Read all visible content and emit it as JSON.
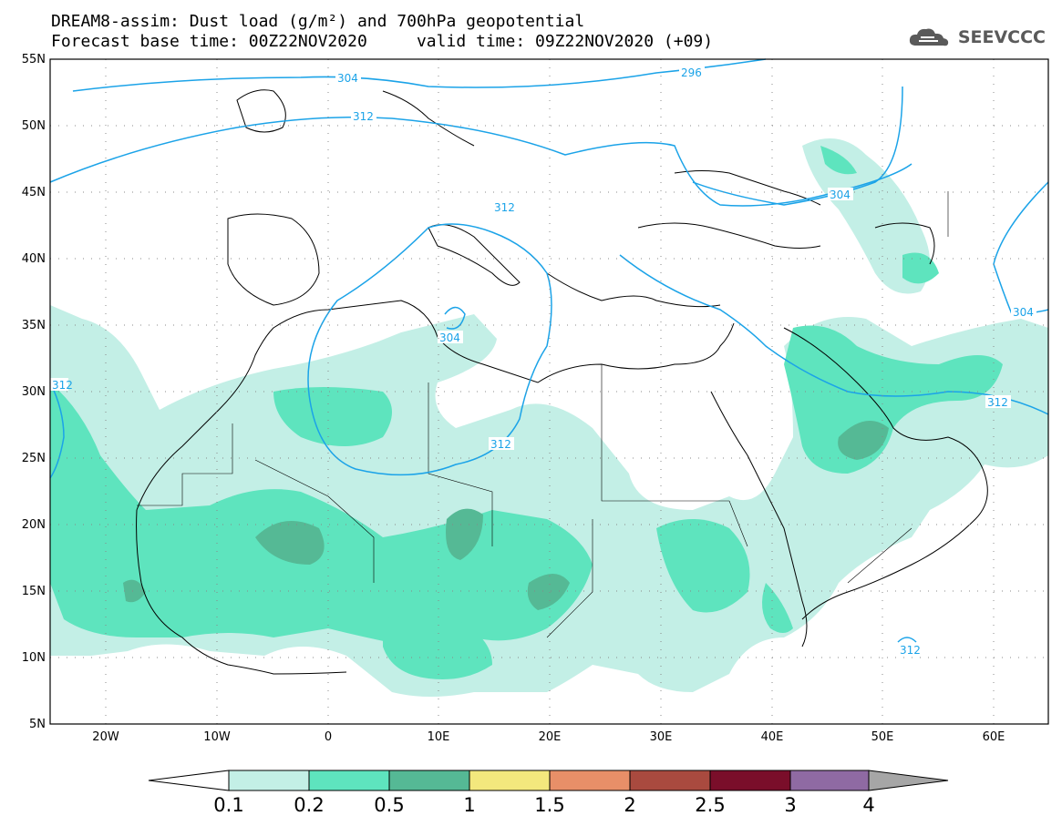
{
  "header": {
    "title_line1": "DREAM8-assim: Dust load (g/m²) and 700hPa geopotential",
    "title_line2": "Forecast base time: 00Z22NOV2020     valid time: 09Z22NOV2020 (+09)",
    "logo_text": "SEEVCCC"
  },
  "map": {
    "lat_labels": [
      "55N",
      "50N",
      "45N",
      "40N",
      "35N",
      "30N",
      "25N",
      "20N",
      "15N",
      "10N",
      "5N"
    ],
    "lon_labels": [
      "20W",
      "10W",
      "0",
      "10E",
      "20E",
      "30E",
      "40E",
      "50E",
      "60E"
    ],
    "contour_labels": [
      "304",
      "296",
      "312",
      "304",
      "312",
      "304",
      "312",
      "312",
      "304",
      "312",
      "312",
      "312"
    ],
    "contour_color": "#1ba3e8",
    "coast_color": "#000000"
  },
  "colorbar": {
    "labels": [
      "0.1",
      "0.2",
      "0.5",
      "1",
      "1.5",
      "2",
      "2.5",
      "3",
      "4"
    ],
    "colors": [
      "#ffffff",
      "#c3efe6",
      "#5ee4be",
      "#55b995",
      "#f3e87d",
      "#e88f68",
      "#a94a3f",
      "#7a0e2a",
      "#8f6aa3",
      "#a6a6a6"
    ]
  }
}
